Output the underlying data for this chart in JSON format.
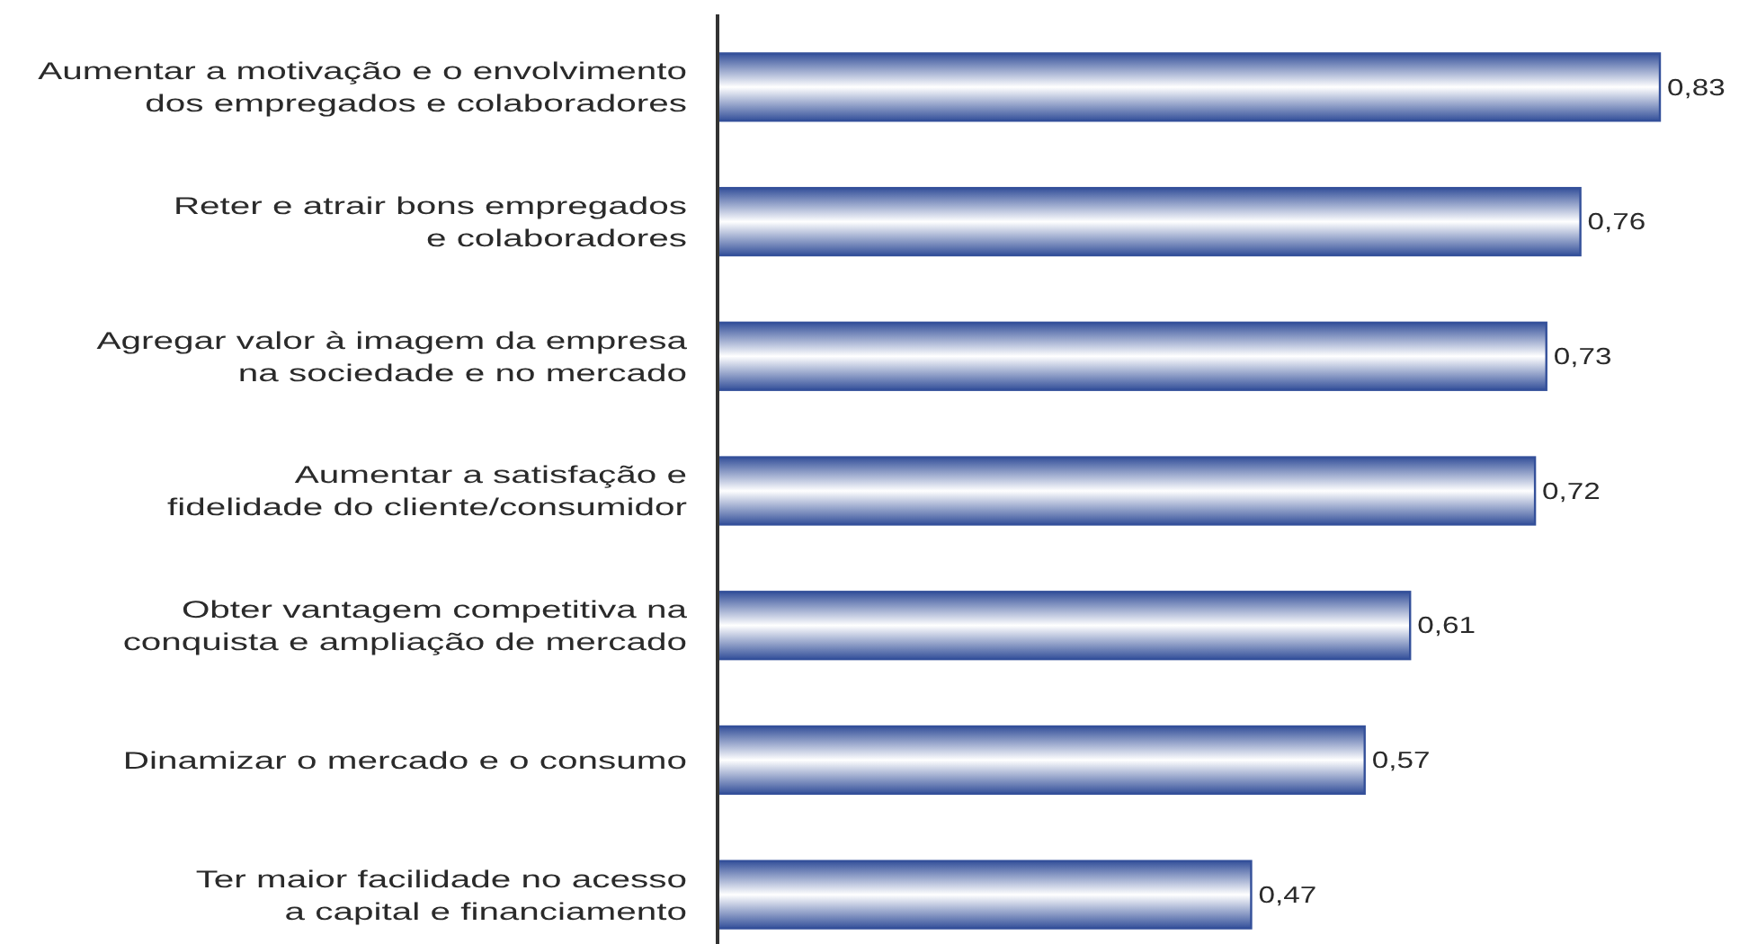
{
  "chart_data": {
    "type": "bar",
    "orientation": "horizontal",
    "categories": [
      "Aumentar a motivação e o envolvimento\ndos empregados e colaboradores",
      "Reter e atrair bons empregados\ne colaboradores",
      "Agregar valor à imagem da empresa\nna sociedade e no mercado",
      "Aumentar a satisfação e\nfidelidade do cliente/consumidor",
      "Obter vantagem competitiva na\nconquista e ampliação de mercado",
      "Dinamizar o mercado e o consumo",
      "Ter maior facilidade no acesso\na capital e financiamento"
    ],
    "values": [
      0.83,
      0.76,
      0.73,
      0.72,
      0.61,
      0.57,
      0.47
    ],
    "value_labels": [
      "0,83",
      "0,76",
      "0,73",
      "0,72",
      "0,61",
      "0,57",
      "0,47"
    ],
    "color": "#34509a"
  }
}
